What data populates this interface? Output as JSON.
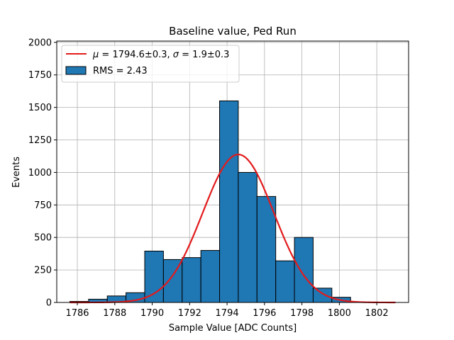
{
  "chart_data": {
    "type": "bar",
    "title": "Baseline value, Ped Run",
    "xlabel": "Sample Value [ADC Counts]",
    "ylabel": "Events",
    "xlim": [
      1784.9,
      1803.7
    ],
    "ylim": [
      0,
      2010
    ],
    "xticks": [
      1786,
      1788,
      1790,
      1792,
      1794,
      1796,
      1798,
      1800,
      1802
    ],
    "yticks": [
      0,
      250,
      500,
      750,
      1000,
      1250,
      1500,
      1750,
      2000
    ],
    "grid": true,
    "legend_position": "top-left",
    "bin_edges": [
      1785.6,
      1786.6,
      1787.6,
      1788.6,
      1789.6,
      1790.6,
      1791.6,
      1792.6,
      1793.6,
      1794.6,
      1795.6,
      1796.6,
      1797.6,
      1798.6,
      1799.6,
      1800.6
    ],
    "counts": [
      8,
      25,
      50,
      75,
      395,
      330,
      345,
      400,
      1550,
      1000,
      815,
      320,
      500,
      110,
      40
    ],
    "fit": {
      "mu": 1794.6,
      "sigma": 1.9,
      "amplitude": 1138,
      "x_range": [
        1785.6,
        1803.0
      ]
    },
    "legend": [
      {
        "label_prefix": "μ",
        "label_text": " = 1794.6±0.3, ",
        "label_sigma": "σ",
        "label_rest": " = 1.9±0.3",
        "kind": "line"
      },
      {
        "label": "RMS = 2.43",
        "kind": "patch"
      }
    ],
    "colors": {
      "bar_fill": "#1f77b4",
      "bar_edge": "#000000",
      "fit_line": "#e31a1c",
      "grid": "#b0b0b0",
      "axis": "#000000"
    }
  }
}
